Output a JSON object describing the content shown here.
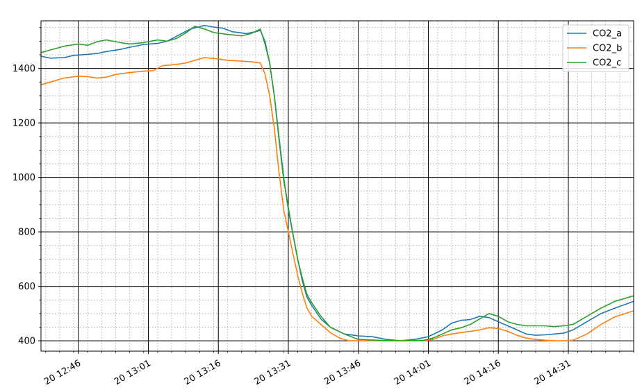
{
  "chart_data": {
    "type": "line",
    "title": "",
    "xlabel": "",
    "ylabel": "",
    "x_ticks": [
      "20 12:46",
      "20 13:01",
      "20 13:16",
      "20 13:31",
      "20 13:46",
      "20 14:01",
      "20 14:16",
      "20 14:31"
    ],
    "x_range": [
      "12:38",
      "14:45"
    ],
    "y_ticks": [
      400,
      600,
      800,
      1000,
      1200,
      1400
    ],
    "ylim": [
      362,
      1575
    ],
    "grid": {
      "major": true,
      "minor": true
    },
    "legend_position": "top-right",
    "series": [
      {
        "name": "CO2_a",
        "color": "#1f77b4",
        "points": [
          [
            "12:38",
            1445
          ],
          [
            "12:40",
            1438
          ],
          [
            "12:43",
            1440
          ],
          [
            "12:45",
            1448
          ],
          [
            "12:48",
            1452
          ],
          [
            "12:50",
            1455
          ],
          [
            "12:52",
            1462
          ],
          [
            "12:55",
            1470
          ],
          [
            "12:57",
            1478
          ],
          [
            "13:00",
            1488
          ],
          [
            "13:03",
            1492
          ],
          [
            "13:05",
            1500
          ],
          [
            "13:07",
            1518
          ],
          [
            "13:10",
            1545
          ],
          [
            "13:13",
            1558
          ],
          [
            "13:15",
            1552
          ],
          [
            "13:17",
            1548
          ],
          [
            "13:19",
            1535
          ],
          [
            "13:22",
            1528
          ],
          [
            "13:24",
            1535
          ],
          [
            "13:25",
            1540
          ],
          [
            "13:26",
            1500
          ],
          [
            "13:27",
            1420
          ],
          [
            "13:28",
            1300
          ],
          [
            "13:29",
            1150
          ],
          [
            "13:30",
            1000
          ],
          [
            "13:31",
            880
          ],
          [
            "13:32",
            790
          ],
          [
            "13:33",
            700
          ],
          [
            "13:34",
            620
          ],
          [
            "13:35",
            560
          ],
          [
            "13:36",
            530
          ],
          [
            "13:38",
            480
          ],
          [
            "13:40",
            450
          ],
          [
            "13:43",
            425
          ],
          [
            "13:46",
            418
          ],
          [
            "13:49",
            415
          ],
          [
            "13:52",
            405
          ],
          [
            "13:55",
            400
          ],
          [
            "13:58",
            405
          ],
          [
            "14:01",
            415
          ],
          [
            "14:04",
            440
          ],
          [
            "14:06",
            465
          ],
          [
            "14:08",
            475
          ],
          [
            "14:10",
            478
          ],
          [
            "14:12",
            490
          ],
          [
            "14:14",
            485
          ],
          [
            "14:16",
            470
          ],
          [
            "14:18",
            455
          ],
          [
            "14:20",
            440
          ],
          [
            "14:22",
            425
          ],
          [
            "14:24",
            420
          ],
          [
            "14:26",
            422
          ],
          [
            "14:28",
            425
          ],
          [
            "14:30",
            428
          ],
          [
            "14:32",
            440
          ],
          [
            "14:35",
            470
          ],
          [
            "14:38",
            500
          ],
          [
            "14:41",
            520
          ],
          [
            "14:45",
            545
          ]
        ]
      },
      {
        "name": "CO2_b",
        "color": "#ff7f0e",
        "points": [
          [
            "12:38",
            1340
          ],
          [
            "12:40",
            1350
          ],
          [
            "12:43",
            1365
          ],
          [
            "12:46",
            1372
          ],
          [
            "12:48",
            1370
          ],
          [
            "12:50",
            1365
          ],
          [
            "12:52",
            1368
          ],
          [
            "12:54",
            1378
          ],
          [
            "12:57",
            1385
          ],
          [
            "13:00",
            1390
          ],
          [
            "13:02",
            1392
          ],
          [
            "13:04",
            1410
          ],
          [
            "13:07",
            1415
          ],
          [
            "13:09",
            1420
          ],
          [
            "13:11",
            1430
          ],
          [
            "13:13",
            1440
          ],
          [
            "13:16",
            1435
          ],
          [
            "13:18",
            1430
          ],
          [
            "13:20",
            1428
          ],
          [
            "13:23",
            1425
          ],
          [
            "13:25",
            1420
          ],
          [
            "13:26",
            1380
          ],
          [
            "13:27",
            1300
          ],
          [
            "13:28",
            1180
          ],
          [
            "13:29",
            1020
          ],
          [
            "13:30",
            880
          ],
          [
            "13:31",
            800
          ],
          [
            "13:32",
            720
          ],
          [
            "13:33",
            640
          ],
          [
            "13:34",
            575
          ],
          [
            "13:35",
            520
          ],
          [
            "13:36",
            490
          ],
          [
            "13:38",
            460
          ],
          [
            "13:40",
            430
          ],
          [
            "13:42",
            410
          ],
          [
            "13:44",
            400
          ],
          [
            "13:46",
            400
          ],
          [
            "13:50",
            400
          ],
          [
            "13:55",
            400
          ],
          [
            "14:00",
            400
          ],
          [
            "14:02",
            405
          ],
          [
            "14:04",
            418
          ],
          [
            "14:06",
            425
          ],
          [
            "14:08",
            430
          ],
          [
            "14:10",
            435
          ],
          [
            "14:12",
            440
          ],
          [
            "14:14",
            448
          ],
          [
            "14:16",
            445
          ],
          [
            "14:18",
            435
          ],
          [
            "14:20",
            420
          ],
          [
            "14:22",
            410
          ],
          [
            "14:24",
            405
          ],
          [
            "14:26",
            402
          ],
          [
            "14:28",
            400
          ],
          [
            "14:30",
            400
          ],
          [
            "14:32",
            402
          ],
          [
            "14:35",
            425
          ],
          [
            "14:38",
            460
          ],
          [
            "14:41",
            488
          ],
          [
            "14:45",
            510
          ]
        ]
      },
      {
        "name": "CO2_c",
        "color": "#2ca02c",
        "points": [
          [
            "12:38",
            1458
          ],
          [
            "12:40",
            1468
          ],
          [
            "12:43",
            1482
          ],
          [
            "12:46",
            1490
          ],
          [
            "12:48",
            1485
          ],
          [
            "12:50",
            1498
          ],
          [
            "12:52",
            1505
          ],
          [
            "12:55",
            1495
          ],
          [
            "12:57",
            1490
          ],
          [
            "13:00",
            1495
          ],
          [
            "13:03",
            1505
          ],
          [
            "13:05",
            1500
          ],
          [
            "13:07",
            1510
          ],
          [
            "13:09",
            1530
          ],
          [
            "13:11",
            1555
          ],
          [
            "13:13",
            1545
          ],
          [
            "13:15",
            1532
          ],
          [
            "13:18",
            1525
          ],
          [
            "13:21",
            1520
          ],
          [
            "13:23",
            1528
          ],
          [
            "13:25",
            1545
          ],
          [
            "13:26",
            1490
          ],
          [
            "13:27",
            1420
          ],
          [
            "13:28",
            1300
          ],
          [
            "13:29",
            1140
          ],
          [
            "13:30",
            990
          ],
          [
            "13:31",
            890
          ],
          [
            "13:32",
            790
          ],
          [
            "13:33",
            700
          ],
          [
            "13:34",
            630
          ],
          [
            "13:35",
            570
          ],
          [
            "13:36",
            540
          ],
          [
            "13:38",
            490
          ],
          [
            "13:40",
            450
          ],
          [
            "13:43",
            425
          ],
          [
            "13:46",
            405
          ],
          [
            "13:50",
            402
          ],
          [
            "13:55",
            400
          ],
          [
            "14:00",
            402
          ],
          [
            "14:02",
            410
          ],
          [
            "14:04",
            425
          ],
          [
            "14:06",
            440
          ],
          [
            "14:08",
            448
          ],
          [
            "14:10",
            460
          ],
          [
            "14:12",
            480
          ],
          [
            "14:14",
            500
          ],
          [
            "14:16",
            490
          ],
          [
            "14:18",
            470
          ],
          [
            "14:20",
            460
          ],
          [
            "14:22",
            455
          ],
          [
            "14:24",
            455
          ],
          [
            "14:26",
            455
          ],
          [
            "14:28",
            452
          ],
          [
            "14:30",
            455
          ],
          [
            "14:32",
            460
          ],
          [
            "14:35",
            490
          ],
          [
            "14:38",
            520
          ],
          [
            "14:41",
            545
          ],
          [
            "14:45",
            565
          ]
        ]
      }
    ]
  }
}
